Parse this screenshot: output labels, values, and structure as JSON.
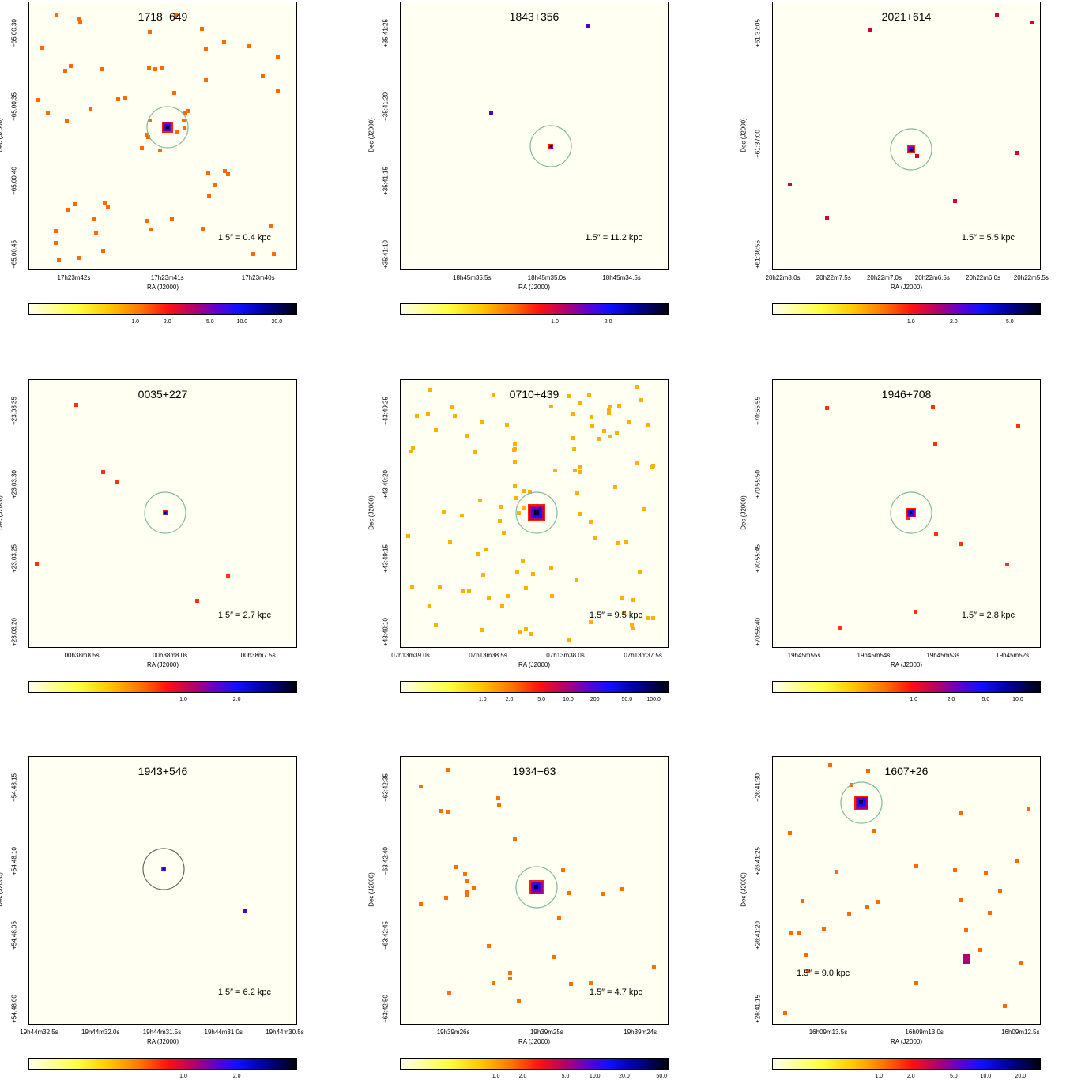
{
  "panels": [
    {
      "title": "1718−649",
      "scale": "1.5″ = 0.4 kpc",
      "ylabel": "Dec (J2000)",
      "xlabel": "RA (J2000)",
      "yticks": [
        "−65:00:30",
        "−65:00:35",
        "−65:00:40",
        "−65:00:45"
      ],
      "xticks": [
        "17h23m42s",
        "17h23m41s",
        "17h23m40s"
      ],
      "cbar": [
        "1.0",
        "2.0",
        "5.0",
        "10.0",
        "20.0"
      ],
      "color": "#ff6a00"
    },
    {
      "title": "1843+356",
      "scale": "1.5″ = 11.2 kpc",
      "ylabel": "Dec (J2000)",
      "xlabel": "RA (J2000)",
      "yticks": [
        "+35:41:25",
        "+35:41:20",
        "+35:41:15",
        "+35:41:10"
      ],
      "xticks": [
        "18h45m35.5s",
        "18h45m35.0s",
        "18h45m34.5s"
      ],
      "cbar": [
        "1.0",
        "2.0"
      ],
      "color": "#5000c0"
    },
    {
      "title": "2021+614",
      "scale": "1.5″ = 5.5 kpc",
      "ylabel": "Dec (J2000)",
      "xlabel": "RA (J2000)",
      "yticks": [
        "+61:37:05",
        "+61:37:00",
        "+61:36:55"
      ],
      "xticks": [
        "20h22m8.0s",
        "20h22m7.5s",
        "20h22m7.0s",
        "20h22m6.5s",
        "20h22m6.0s",
        "20h22m5.5s"
      ],
      "cbar": [
        "1.0",
        "2.0",
        "5.0"
      ],
      "color": "#d00030"
    },
    {
      "title": "0035+227",
      "scale": "1.5″ = 2.7 kpc",
      "ylabel": "Dec (J2000)",
      "xlabel": "RA (J2000)",
      "yticks": [
        "+23:03:35",
        "+23:03:30",
        "+23:03:25",
        "+23:03:20"
      ],
      "xticks": [
        "00h38m8.5s",
        "00h38m8.0s",
        "00h38m7.5s"
      ],
      "cbar": [
        "1.0",
        "2.0"
      ],
      "color": "#ff3010"
    },
    {
      "title": "0710+439",
      "scale": "1.5″ = 9.5 kpc",
      "ylabel": "Dec (J2000)",
      "xlabel": "RA (J2000)",
      "yticks": [
        "+43:49:25",
        "+43:49:20",
        "+43:49:15",
        "+43:49:10"
      ],
      "xticks": [
        "07h13m39.0s",
        "07h13m38.5s",
        "07h13m38.0s",
        "07h13m37.5s"
      ],
      "cbar": [
        "1.0",
        "2.0",
        "5.0",
        "10.0",
        "200",
        "50.0",
        "100.0"
      ],
      "color": "#ffb000"
    },
    {
      "title": "1946+708",
      "scale": "1.5″ = 2.8 kpc",
      "ylabel": "Dec (J2000)",
      "xlabel": "RA (J2000)",
      "yticks": [
        "+70:55:55",
        "+70:55:50",
        "+70:55:45",
        "+70:55:40"
      ],
      "xticks": [
        "19h45m55s",
        "19h45m54s",
        "19h45m53s",
        "19h45m52s"
      ],
      "cbar": [
        "1.0",
        "2.0",
        "5.0",
        "10.0"
      ],
      "color": "#ff3010"
    },
    {
      "title": "1943+546",
      "scale": "1.5″ = 6.2 kpc",
      "ylabel": "Dec (J2000)",
      "xlabel": "RA (J2000)",
      "yticks": [
        "+54:48:15",
        "+54:48:10",
        "+54:48:05",
        "+54:48:00"
      ],
      "xticks": [
        "19h44m32.5s",
        "19h44m32.0s",
        "19h44m31.5s",
        "19h44m31.0s",
        "19h44m30.5s"
      ],
      "cbar": [
        "1.0",
        "2.0"
      ],
      "color": "#5000c0"
    },
    {
      "title": "1934−63",
      "scale": "1.5″ = 4.7 kpc",
      "ylabel": "Dec (J2000)",
      "xlabel": "RA (J2000)",
      "yticks": [
        "−63:42:35",
        "−63:42:40",
        "−63:42:45",
        "−63:42:50"
      ],
      "xticks": [
        "19h39m26s",
        "19h39m25s",
        "19h39m24s"
      ],
      "cbar": [
        "1.0",
        "2.0",
        "5.0",
        "10.0",
        "20.0",
        "50.0"
      ],
      "color": "#ff7000"
    },
    {
      "title": "1607+26",
      "scale": "1.5″ = 9.0 kpc",
      "ylabel": "Dec (J2000)",
      "xlabel": "RA (J2000)",
      "yticks": [
        "+26:41:30",
        "+26:41:25",
        "+26:41:20",
        "+26:41:15"
      ],
      "xticks": [
        "16h09m13.5s",
        "16h09m13.0s",
        "16h09m12.5s"
      ],
      "cbar": [
        "1.0",
        "2.0",
        "5.0",
        "10.0",
        "20.0"
      ],
      "color": "#ff6a00"
    }
  ]
}
